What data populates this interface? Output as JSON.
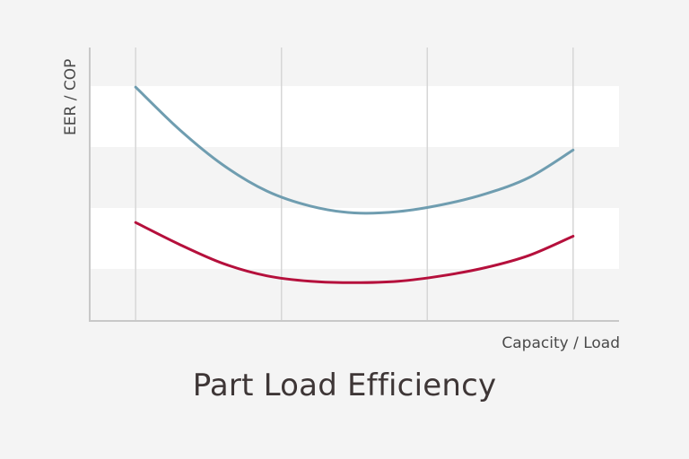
{
  "chart_data": {
    "type": "line",
    "title": "Part Load Efficiency",
    "xlabel": "Capacity / Load",
    "ylabel": "EER / COP",
    "x": [
      0,
      0.1,
      0.2,
      0.3,
      0.4,
      0.5,
      0.6,
      0.7,
      0.8,
      0.9,
      1.0
    ],
    "xlim": [
      -0.105,
      1.105
    ],
    "ylim": [
      0,
      1
    ],
    "grid": true,
    "banded_background": true,
    "series": [
      {
        "color": "#6f9db0",
        "values": [
          0.855,
          0.7,
          0.57,
          0.475,
          0.42,
          0.395,
          0.4,
          0.425,
          0.465,
          0.525,
          0.625
        ]
      },
      {
        "color": "#b5103c",
        "values": [
          0.36,
          0.28,
          0.21,
          0.165,
          0.145,
          0.14,
          0.145,
          0.165,
          0.195,
          0.24,
          0.31
        ]
      }
    ]
  }
}
